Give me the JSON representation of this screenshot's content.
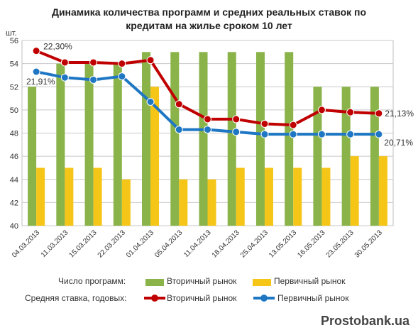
{
  "chart_data": {
    "type": "bar",
    "title_line1": "Динамика количества программ и средних реальных ставок по",
    "title_line2": "кредитам на жилье сроком 10 лет",
    "unit_label": "шт.",
    "categories": [
      "04.03.2013",
      "11.03.2013",
      "15.03.2013",
      "22.03.2013",
      "01.04.2013",
      "05.04.2013",
      "11.04.2013",
      "18.04.2013",
      "25.04.2013",
      "13.05.2013",
      "16.05.2013",
      "23.05.2013",
      "30.05.2013"
    ],
    "ylim": [
      40,
      56
    ],
    "yticks": [
      "40",
      "42",
      "44",
      "46",
      "48",
      "50",
      "52",
      "54",
      "56"
    ],
    "grid": true,
    "bar_series": [
      {
        "name": "Вторичный рынок",
        "color": "#8ab34a",
        "values": [
          52,
          54,
          54,
          54,
          55,
          55,
          55,
          55,
          55,
          55,
          52,
          52,
          52
        ]
      },
      {
        "name": "Первичный рынок",
        "color": "#f5c518",
        "values": [
          45,
          45,
          45,
          44,
          52,
          44,
          44,
          45,
          45,
          45,
          45,
          46,
          46
        ]
      }
    ],
    "line_series": [
      {
        "name": "Вторичный рынок",
        "color": "#c00000",
        "values": [
          55.1,
          54.1,
          54.1,
          54.0,
          54.3,
          50.5,
          49.2,
          49.2,
          48.8,
          48.7,
          50.0,
          49.8,
          49.7
        ]
      },
      {
        "name": "Первичный рынок",
        "color": "#1f77c4",
        "values": [
          53.3,
          52.8,
          52.6,
          52.9,
          50.7,
          48.3,
          48.3,
          48.1,
          47.9,
          47.9,
          47.9,
          47.9,
          47.9
        ]
      }
    ],
    "annotations": [
      {
        "text": "22,30%"
      },
      {
        "text": "21,91%"
      },
      {
        "text": "21,13%"
      },
      {
        "text": "20,71%"
      }
    ],
    "legend": {
      "programs_label": "Число программ:",
      "rate_label": "Средняя  ставка, годовых:",
      "bar_secondary": "Вторичный рынок",
      "bar_primary": "Первичный рынок",
      "line_secondary": "Вторичный рынок",
      "line_primary": "Первичный рынок"
    },
    "watermark": "Prostobank.ua"
  }
}
